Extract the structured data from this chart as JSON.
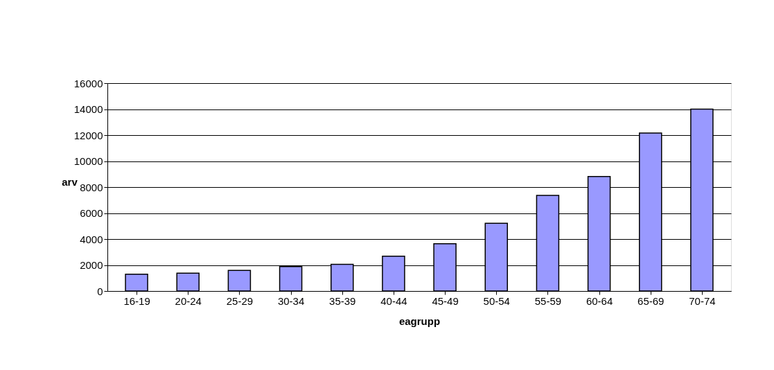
{
  "chart_data": {
    "type": "bar",
    "xlabel": "eagrupp",
    "ylabel": "arv",
    "categories": [
      "16-19",
      "20-24",
      "25-29",
      "30-34",
      "35-39",
      "40-44",
      "45-49",
      "50-54",
      "55-59",
      "60-64",
      "65-69",
      "70-74"
    ],
    "values": [
      1290,
      1380,
      1590,
      1880,
      2050,
      2680,
      3640,
      5210,
      7360,
      8820,
      12160,
      14000
    ],
    "color": "#9999ff",
    "ylim": [
      0,
      16000
    ],
    "yticks": [
      0,
      2000,
      4000,
      6000,
      8000,
      10000,
      12000,
      14000,
      16000
    ],
    "grid": "y"
  }
}
